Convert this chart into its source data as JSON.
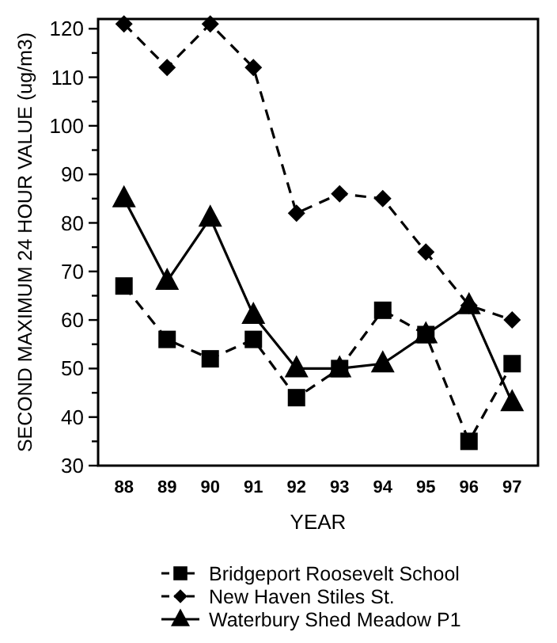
{
  "chart_data": {
    "type": "line",
    "xlabel": "YEAR",
    "ylabel": "SECOND MAXIMUM 24 HOUR VALUE (ug/m3)",
    "categories": [
      "88",
      "89",
      "90",
      "91",
      "92",
      "93",
      "94",
      "95",
      "96",
      "97"
    ],
    "series": [
      {
        "name": "Bridgeport Roosevelt School",
        "color": "#000000",
        "marker": "square",
        "line_style": "dashed",
        "values": [
          67,
          56,
          52,
          56,
          44,
          50,
          62,
          57,
          35,
          51
        ]
      },
      {
        "name": "New Haven Stiles St.",
        "color": "#000000",
        "marker": "diamond",
        "line_style": "dashed",
        "values": [
          121,
          112,
          121,
          112,
          82,
          86,
          85,
          74,
          63,
          60
        ]
      },
      {
        "name": "Waterbury Shed Meadow P1",
        "color": "#000000",
        "marker": "triangle",
        "line_style": "solid",
        "values": [
          85,
          68,
          81,
          61,
          50,
          50,
          51,
          57,
          63,
          43
        ]
      }
    ],
    "ylim": [
      30,
      122
    ],
    "yticks": [
      30,
      {
        "value": 35,
        "label": null
      },
      40,
      {
        "value": 45,
        "label": null
      },
      50,
      {
        "value": 55,
        "label": null
      },
      60,
      {
        "value": 65,
        "label": null
      },
      70,
      {
        "value": 75,
        "label": null
      },
      80,
      {
        "value": 85,
        "label": null
      },
      90,
      {
        "value": 95,
        "label": null
      },
      100,
      {
        "value": 105,
        "label": null
      },
      110,
      {
        "value": 115,
        "label": null
      },
      120
    ],
    "grid": false,
    "legend": "bottom"
  }
}
